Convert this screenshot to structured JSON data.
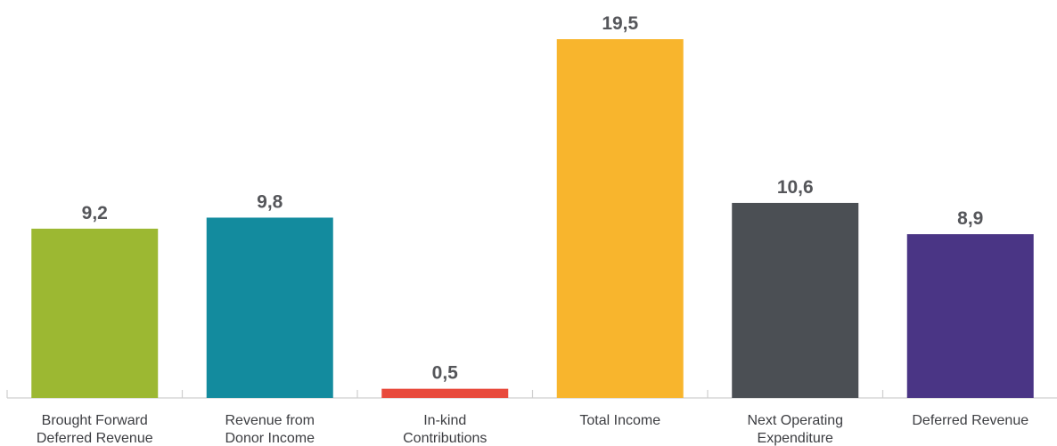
{
  "chart_data": {
    "type": "bar",
    "title": "",
    "xlabel": "",
    "ylabel": "",
    "ylim": [
      0,
      19.5
    ],
    "grid": false,
    "categories": [
      [
        "Brought Forward",
        "Deferred Revenue"
      ],
      [
        "Revenue from",
        "Donor Income"
      ],
      [
        "In-kind",
        "Contributions"
      ],
      [
        "Total Income"
      ],
      [
        "Next Operating",
        "Expenditure"
      ],
      [
        "Deferred Revenue"
      ]
    ],
    "values": [
      9.2,
      9.8,
      0.5,
      19.5,
      10.6,
      8.9
    ],
    "value_labels": [
      "9,2",
      "9,8",
      "0,5",
      "19,5",
      "10,6",
      "8,9"
    ],
    "colors": [
      "#9cb832",
      "#138b9e",
      "#e84a3c",
      "#f8b52d",
      "#4b4f54",
      "#4a3585"
    ]
  }
}
